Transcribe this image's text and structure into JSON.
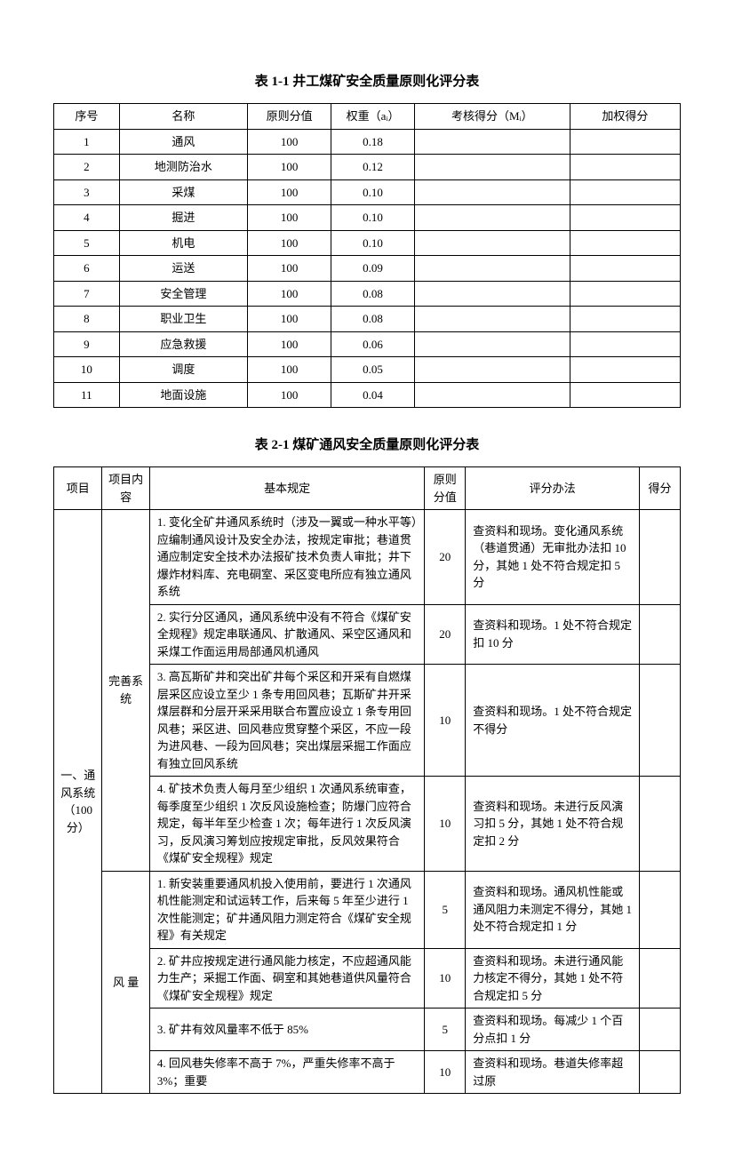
{
  "table1": {
    "title": "表 1-1 井工煤矿安全质量原则化评分表",
    "headers": [
      "序号",
      "名称",
      "原则分值",
      "权重（aᵢ）",
      "考核得分（Mᵢ）",
      "加权得分"
    ],
    "rows": [
      [
        "1",
        "通风",
        "100",
        "0.18",
        "",
        ""
      ],
      [
        "2",
        "地测防治水",
        "100",
        "0.12",
        "",
        ""
      ],
      [
        "3",
        "采煤",
        "100",
        "0.10",
        "",
        ""
      ],
      [
        "4",
        "掘进",
        "100",
        "0.10",
        "",
        ""
      ],
      [
        "5",
        "机电",
        "100",
        "0.10",
        "",
        ""
      ],
      [
        "6",
        "运送",
        "100",
        "0.09",
        "",
        ""
      ],
      [
        "7",
        "安全管理",
        "100",
        "0.08",
        "",
        ""
      ],
      [
        "8",
        "职业卫生",
        "100",
        "0.08",
        "",
        ""
      ],
      [
        "9",
        "应急救援",
        "100",
        "0.06",
        "",
        ""
      ],
      [
        "10",
        "调度",
        "100",
        "0.05",
        "",
        ""
      ],
      [
        "11",
        "地面设施",
        "100",
        "0.04",
        "",
        ""
      ]
    ]
  },
  "table2": {
    "title": "表 2-1  煤矿通风安全质量原则化评分表",
    "headers": [
      "项目",
      "项目内容",
      "基本规定",
      "原则分值",
      "评分办法",
      "得分"
    ],
    "col1": "一、通风系统（100分）",
    "groups": [
      {
        "name": "完善系统",
        "rows": [
          {
            "rule": "1. 变化全矿井通风系统时（涉及一翼或一种水平等）应编制通风设计及安全办法，按规定审批；巷道贯通应制定安全技术办法报矿技术负责人审批；井下爆炸材料库、充电硐室、采区变电所应有独立通风系统",
            "score": "20",
            "method": "查资料和现场。变化通风系统（巷道贯通）无审批办法扣 10 分，其她 1 处不符合规定扣 5 分",
            "got": ""
          },
          {
            "rule": "2. 实行分区通风，通风系统中没有不符合《煤矿安全规程》规定串联通风、扩散通风、采空区通风和采煤工作面运用局部通风机通风",
            "score": "20",
            "method": "查资料和现场。1 处不符合规定扣 10 分",
            "got": ""
          },
          {
            "rule": "3. 高瓦斯矿井和突出矿井每个采区和开采有自燃煤层采区应设立至少 1 条专用回风巷；瓦斯矿井开采煤层群和分层开采采用联合布置应设立 1 条专用回风巷；采区进、回风巷应贯穿整个采区，不应一段为进风巷、一段为回风巷；突出煤层采掘工作面应有独立回风系统",
            "score": "10",
            "method": "查资料和现场。1 处不符合规定不得分",
            "got": ""
          },
          {
            "rule": "4. 矿技术负责人每月至少组织 1 次通风系统审查，每季度至少组织 1 次反风设施检查；防爆门应符合规定，每半年至少检查 1 次；每年进行 1 次反风演习，反风演习筹划应按规定审批，反风效果符合《煤矿安全规程》规定",
            "score": "10",
            "method": "查资料和现场。未进行反风演习扣 5 分，其她 1 处不符合规定扣 2 分",
            "got": ""
          }
        ]
      },
      {
        "name": "风  量",
        "rows": [
          {
            "rule": "1. 新安装重要通风机投入使用前，要进行 1 次通风机性能测定和试运转工作，后来每 5 年至少进行 1 次性能测定；矿井通风阻力测定符合《煤矿安全规程》有关规定",
            "score": "5",
            "method": "查资料和现场。通风机性能或通风阻力未测定不得分，其她 1 处不符合规定扣 1 分",
            "got": ""
          },
          {
            "rule": "2. 矿井应按规定进行通风能力核定，不应超通风能力生产；采掘工作面、硐室和其她巷道供风量符合《煤矿安全规程》规定",
            "score": "10",
            "method": "查资料和现场。未进行通风能力核定不得分，其她 1 处不符合规定扣 5 分",
            "got": ""
          },
          {
            "rule": "3. 矿井有效风量率不低于 85%",
            "score": "5",
            "method": "查资料和现场。每减少 1 个百分点扣 1 分",
            "got": ""
          },
          {
            "rule": "4. 回风巷失修率不高于 7%，严重失修率不高于 3%；重要",
            "score": "10",
            "method": "查资料和现场。巷道失修率超过原",
            "got": ""
          }
        ]
      }
    ]
  }
}
